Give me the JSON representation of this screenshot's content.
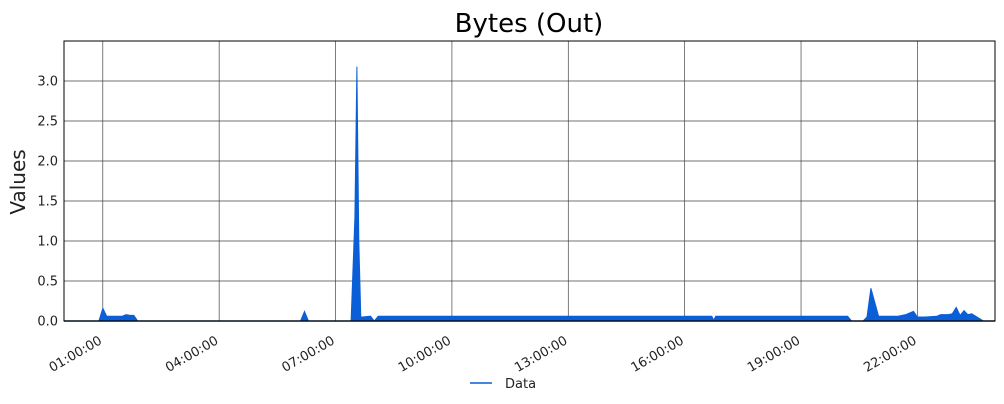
{
  "chart_data": {
    "type": "area",
    "title": "Bytes (Out)",
    "xlabel": "",
    "ylabel": "Values",
    "xlim": [
      "00:00:00",
      "24:00:00"
    ],
    "ylim": [
      0,
      3.5
    ],
    "yticks": [
      0.0,
      0.5,
      1.0,
      1.5,
      2.0,
      2.5,
      3.0
    ],
    "ytick_labels": [
      "0.0",
      "0.5",
      "1.0",
      "1.5",
      "2.0",
      "2.5",
      "3.0"
    ],
    "xticks": [
      "01:00:00",
      "04:00:00",
      "07:00:00",
      "10:00:00",
      "13:00:00",
      "16:00:00",
      "19:00:00",
      "22:00:00"
    ],
    "grid": true,
    "legend_position": "bottom-center",
    "series": [
      {
        "name": "Data",
        "color": "#0a5fd6",
        "x": [
          "00:00:00",
          "00:54:00",
          "01:00:00",
          "01:06:00",
          "01:12:00",
          "01:30:00",
          "01:36:00",
          "01:42:00",
          "01:48:00",
          "01:54:00",
          "06:06:00",
          "06:12:00",
          "06:18:00",
          "07:24:00",
          "07:30:00",
          "07:33:00",
          "07:36:00",
          "07:39:00",
          "07:42:00",
          "07:54:00",
          "08:00:00",
          "08:06:00",
          "08:12:00",
          "08:18:00",
          "08:24:00",
          "16:42:00",
          "16:45:00",
          "16:48:00",
          "20:06:00",
          "20:12:00",
          "20:18:00",
          "20:30:00",
          "20:36:00",
          "20:42:00",
          "20:48:00",
          "21:00:00",
          "21:30:00",
          "21:42:00",
          "21:54:00",
          "22:00:00",
          "22:12:00",
          "22:30:00",
          "22:36:00",
          "22:48:00",
          "22:54:00",
          "23:00:00",
          "23:06:00",
          "23:12:00",
          "23:18:00",
          "23:24:00",
          "23:30:00",
          "23:36:00",
          "23:42:00",
          "23:48:00",
          "24:00:00"
        ],
        "values": [
          0,
          0,
          0.16,
          0.06,
          0.06,
          0.06,
          0.08,
          0.07,
          0.07,
          0,
          0,
          0.12,
          0,
          0,
          1.3,
          3.18,
          1.0,
          0.05,
          0.05,
          0.06,
          0,
          0.06,
          0.06,
          0.06,
          0.06,
          0.06,
          0.01,
          0.06,
          0.06,
          0.06,
          0,
          0,
          0,
          0.05,
          0.41,
          0.06,
          0.06,
          0.08,
          0.12,
          0.05,
          0.05,
          0.06,
          0.08,
          0.08,
          0.09,
          0.17,
          0.07,
          0.13,
          0.08,
          0.09,
          0.06,
          0.03,
          0,
          0,
          0
        ]
      }
    ]
  }
}
